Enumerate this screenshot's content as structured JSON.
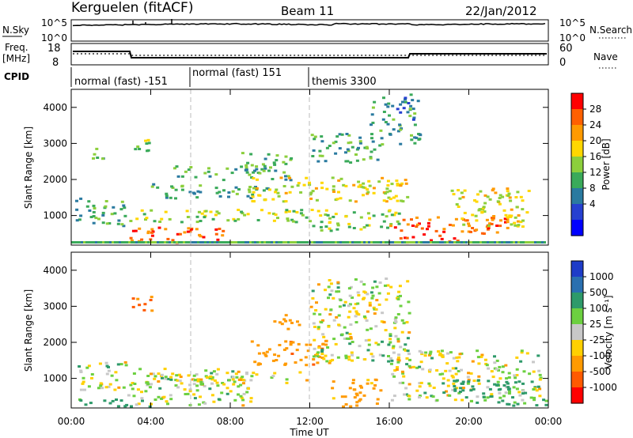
{
  "header": {
    "station": "Kerguelen (fitACF)",
    "beam": "Beam 11",
    "date": "22/Jan/2012"
  },
  "noise_panel": {
    "left_label": "N.Sky",
    "right_label": "N.Search",
    "left_ticks": [
      "10^5",
      "10^0"
    ],
    "right_ticks": [
      "10^5",
      "10^0"
    ]
  },
  "freq_panel": {
    "left_label_line1": "Freq.",
    "left_label_line2": "[MHz]",
    "right_label": "Nave",
    "left_ticks": [
      "18",
      "8"
    ],
    "right_ticks": [
      "60",
      "0"
    ]
  },
  "cpid_panel": {
    "label": "CPID",
    "programs": [
      {
        "name": "normal (fast) -151",
        "start_hour": 0,
        "end_hour": 6
      },
      {
        "name": "normal (fast) 151",
        "start_hour": 6,
        "end_hour": 12
      },
      {
        "name": "themis 3300",
        "start_hour": 12,
        "end_hour": 24
      }
    ]
  },
  "power_colorbar": {
    "label": "Power [dB]",
    "ticks": [
      "28",
      "24",
      "20",
      "16",
      "12",
      "8",
      "4"
    ],
    "colors": [
      "#ff0000",
      "#ff6000",
      "#ff9a00",
      "#ffd700",
      "#8ccf3c",
      "#3aaa5a",
      "#2a7aa0",
      "#2640d0",
      "#0000ff"
    ]
  },
  "velocity_colorbar": {
    "label": "Velocity [m s⁻¹]",
    "ticks": [
      "1000",
      "500",
      "100",
      "25",
      "-25",
      "-100",
      "-500",
      "-1000"
    ],
    "colors": [
      "#1e3cc8",
      "#2a70b0",
      "#2e9a6a",
      "#6cd040",
      "#c8c8c8",
      "#ffd000",
      "#ff9a00",
      "#ff5a00",
      "#ff0000"
    ]
  },
  "axes": {
    "x_ticks": [
      "00:00",
      "04:00",
      "08:00",
      "12:00",
      "16:00",
      "20:00",
      "00:00"
    ],
    "x_label": "Time UT",
    "y_label": "Slant Range [km]",
    "y_ticks": [
      "4000",
      "3000",
      "2000",
      "1000"
    ]
  },
  "chart_data": [
    {
      "type": "heatmap",
      "title": "Power",
      "xlabel": "Time UT",
      "ylabel": "Slant Range [km]",
      "xlim": [
        0,
        24
      ],
      "ylim": [
        180,
        4500
      ],
      "value_range": [
        0,
        30
      ],
      "bands": [
        {
          "t0": 0.2,
          "t1": 2.8,
          "r0": 700,
          "r1": 1500,
          "p": 9
        },
        {
          "t0": 2.8,
          "t1": 7.8,
          "r0": 280,
          "r1": 700,
          "p": 26
        },
        {
          "t0": 2.5,
          "t1": 12,
          "r0": 850,
          "r1": 1200,
          "p": 14
        },
        {
          "t0": 4,
          "t1": 10,
          "r0": 1500,
          "r1": 1900,
          "p": 10
        },
        {
          "t0": 5,
          "t1": 11,
          "r0": 2000,
          "r1": 2400,
          "p": 11
        },
        {
          "t0": 8.5,
          "t1": 11,
          "r0": 2400,
          "r1": 2800,
          "p": 12
        },
        {
          "t0": 9,
          "t1": 17,
          "r0": 1400,
          "r1": 2100,
          "p": 17
        },
        {
          "t0": 12,
          "t1": 15.5,
          "r0": 2500,
          "r1": 3300,
          "p": 9
        },
        {
          "t0": 15,
          "t1": 17.5,
          "r0": 3000,
          "r1": 4400,
          "p": 8
        },
        {
          "t0": 12,
          "t1": 16.5,
          "r0": 600,
          "r1": 1200,
          "p": 14
        },
        {
          "t0": 16,
          "t1": 22,
          "r0": 500,
          "r1": 1000,
          "p": 25
        },
        {
          "t0": 16.5,
          "t1": 19.5,
          "r0": 280,
          "r1": 500,
          "p": 27
        },
        {
          "t0": 19,
          "t1": 23,
          "r0": 700,
          "r1": 1800,
          "p": 17
        },
        {
          "t0": 0.8,
          "t1": 1.6,
          "r0": 2500,
          "r1": 2900,
          "p": 10
        },
        {
          "t0": 3,
          "t1": 4,
          "r0": 2800,
          "r1": 3300,
          "p": 14
        }
      ]
    },
    {
      "type": "heatmap",
      "title": "Velocity",
      "xlabel": "Time UT",
      "ylabel": "Slant Range [km]",
      "xlim": [
        0,
        24
      ],
      "ylim": [
        180,
        4500
      ],
      "value_range": [
        -1000,
        1000
      ],
      "bands": [
        {
          "t0": 0.2,
          "t1": 2.8,
          "r0": 700,
          "r1": 1500,
          "v": 0
        },
        {
          "t0": 2.8,
          "t1": 9,
          "r0": 280,
          "r1": 1300,
          "v": 0
        },
        {
          "t0": 4,
          "t1": 12,
          "r0": 850,
          "r1": 1200,
          "v": 0
        },
        {
          "t0": 9,
          "t1": 13,
          "r0": 1400,
          "r1": 2100,
          "v": -400
        },
        {
          "t0": 10,
          "t1": 11.5,
          "r0": 2400,
          "r1": 2800,
          "v": -300
        },
        {
          "t0": 12,
          "t1": 17,
          "r0": 1500,
          "r1": 3800,
          "v": 0
        },
        {
          "t0": 13,
          "t1": 15.5,
          "r0": 200,
          "r1": 1000,
          "v": -200
        },
        {
          "t0": 16,
          "t1": 24,
          "r0": 400,
          "r1": 1800,
          "v": 0
        },
        {
          "t0": 19,
          "t1": 23,
          "r0": 500,
          "r1": 1000,
          "v": 300
        },
        {
          "t0": 0,
          "t1": 4,
          "r0": 200,
          "r1": 450,
          "v": 200
        },
        {
          "t0": 20,
          "t1": 24,
          "r0": 200,
          "r1": 450,
          "v": 150
        },
        {
          "t0": 3,
          "t1": 4,
          "r0": 2800,
          "r1": 3300,
          "v": -500
        }
      ]
    }
  ]
}
